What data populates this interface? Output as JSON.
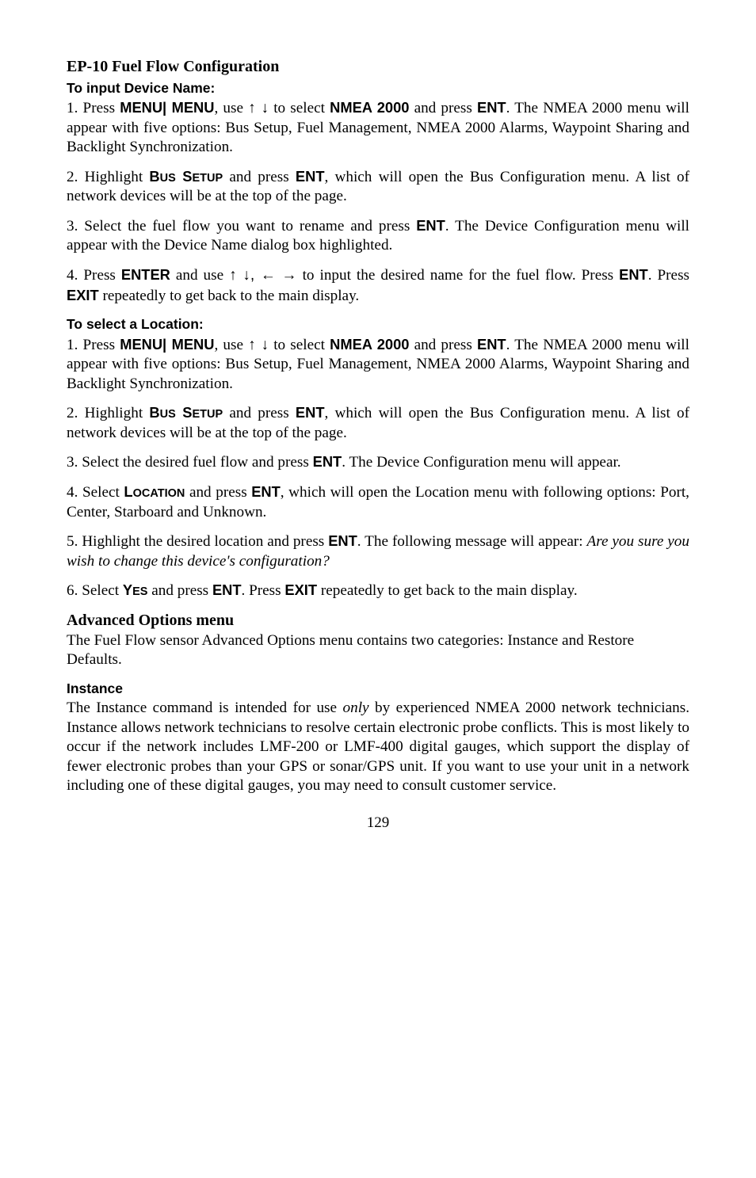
{
  "title": "EP-10 Fuel Flow Configuration",
  "h_input_device": "To input Device Name:",
  "p_input_1_a": "1. Press ",
  "key_menu_menu": "MENU| MENU",
  "p_input_1_b": ", use ",
  "arrows_ud": "↑ ↓",
  "p_input_1_c": " to select ",
  "key_nmea2000": "NMEA 2000",
  "p_input_1_d": " and press ",
  "key_ent": "ENT",
  "p_input_1_e": ". The NMEA 2000 menu will appear with five options: Bus Setup, Fuel Management, NMEA 2000 Alarms, Waypoint Sharing and Backlight Synchronization.",
  "p_input_2_a": "2. Highlight ",
  "key_bus": "B",
  "key_bus_sc": "US",
  "key_setup": " S",
  "key_setup_sc": "ETUP",
  "p_input_2_b": " and press ",
  "p_input_2_c": ", which will open the Bus Configuration menu. A list of network devices will be at the top of the page.",
  "p_input_3_a": "3. Select the fuel flow you want to rename and press ",
  "p_input_3_b": ". The Device Configuration menu will appear with the Device Name dialog box highlighted.",
  "p_input_4_a": "4. Press ",
  "key_enter": "ENTER",
  "p_input_4_b": " and use ",
  "arrows_udlr": "↑ ↓, ← →",
  "p_input_4_c": " to input the desired name for the fuel flow. Press ",
  "p_input_4_d": ". Press ",
  "key_exit": "EXIT",
  "p_input_4_e": " repeatedly to get back to the main display.",
  "h_select_loc": "To select a Location:",
  "p_loc_1_c": "  to select ",
  "p_loc_3_a": "3. Select the desired fuel flow and press ",
  "p_loc_3_b": ". The Device Configuration menu will appear.",
  "p_loc_4_a": "4. Select ",
  "key_location": "L",
  "key_location_sc": "OCATION",
  "p_loc_4_b": " and press ",
  "p_loc_4_c": ", which will open the Location menu with following options: Port, Center, Starboard and Unknown.",
  "p_loc_5_a": "5. Highlight the desired location and press ",
  "p_loc_5_b": ". The following message will appear: ",
  "p_loc_5_em": "Are you sure you wish to change this device's configuration?",
  "p_loc_6_a": "6. Select ",
  "key_yes": "Y",
  "key_yes_sc": "ES",
  "p_loc_6_b": " and press ",
  "p_loc_6_c": ". Press ",
  "p_loc_6_d": " repeatedly to get back to the main display.",
  "h_adv": "Advanced Options menu",
  "p_adv": "The Fuel Flow sensor Advanced Options menu contains two categories: Instance and Restore Defaults.",
  "h_instance": "Instance",
  "p_instance_a": "The Instance command is intended for use ",
  "p_instance_em": "only",
  "p_instance_b": " by experienced NMEA 2000 network technicians. Instance allows network technicians to resolve certain electronic probe conflicts. This is most likely to occur if the network includes LMF-200 or LMF-400 digital gauges, which support the display of fewer electronic probes than your GPS or sonar/GPS unit. If you want to use your unit in a network including one of these digital gauges, you may need to consult customer service.",
  "page_number": "129"
}
